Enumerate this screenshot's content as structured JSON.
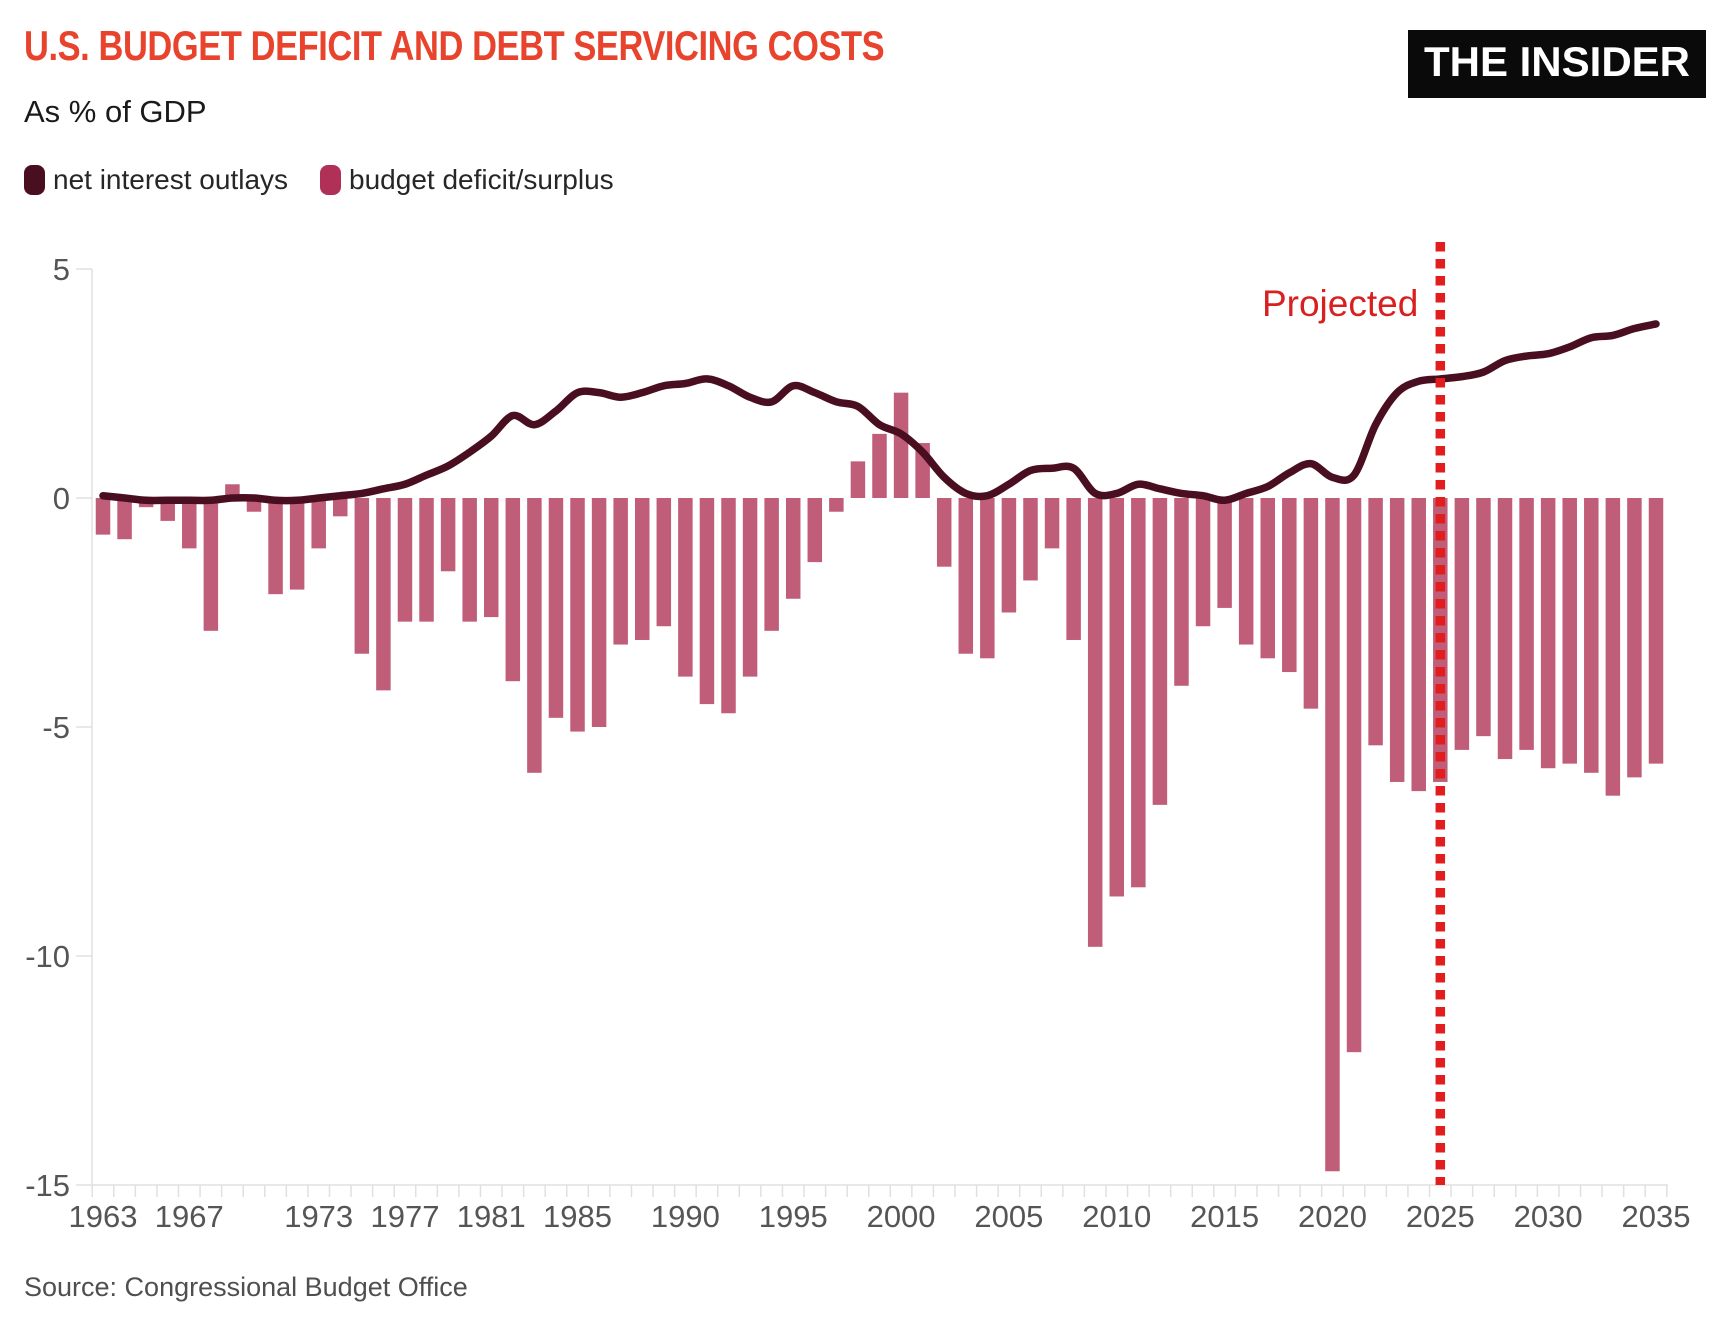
{
  "header": {
    "title": "U.S. BUDGET DEFICIT AND DEBT SERVICING COSTS",
    "subtitle": "As % of GDP",
    "brand": "THE INSIDER"
  },
  "legend": {
    "items": [
      {
        "label": "net interest outlays",
        "color": "#4A0E21"
      },
      {
        "label": "budget deficit/surplus",
        "color": "#B03057"
      }
    ]
  },
  "annotation": {
    "projected_label": "Projected",
    "projected_year": 2025
  },
  "footer": {
    "source": "Source: Congressional Budget Office"
  },
  "colors": {
    "title": "#E8432D",
    "bar": "#C05E7A",
    "line": "#4A0E21",
    "projected_line": "#E11D1D",
    "projected_label": "#D92020",
    "axis": "#E0E0E0",
    "tick_text": "#555555",
    "background": "#FFFFFF",
    "brand_bg": "#0A0A0A",
    "brand_text": "#FFFFFF"
  },
  "chart_data": {
    "type": "bar+line",
    "title": "U.S. BUDGET DEFICIT AND DEBT SERVICING COSTS",
    "subtitle": "As % of GDP",
    "x": [
      1963,
      1964,
      1965,
      1966,
      1967,
      1968,
      1969,
      1970,
      1971,
      1972,
      1973,
      1974,
      1975,
      1976,
      1977,
      1978,
      1979,
      1980,
      1981,
      1982,
      1983,
      1984,
      1985,
      1986,
      1987,
      1988,
      1989,
      1990,
      1991,
      1992,
      1993,
      1994,
      1995,
      1996,
      1997,
      1998,
      1999,
      2000,
      2001,
      2002,
      2003,
      2004,
      2005,
      2006,
      2007,
      2008,
      2009,
      2010,
      2011,
      2012,
      2013,
      2014,
      2015,
      2016,
      2017,
      2018,
      2019,
      2020,
      2021,
      2022,
      2023,
      2024,
      2025,
      2026,
      2027,
      2028,
      2029,
      2030,
      2031,
      2032,
      2033,
      2034,
      2035
    ],
    "series": [
      {
        "name": "budget deficit/surplus",
        "type": "bar",
        "color": "#C05E7A",
        "values": [
          -0.8,
          -0.9,
          -0.2,
          -0.5,
          -1.1,
          -2.9,
          0.3,
          -0.3,
          -2.1,
          -2.0,
          -1.1,
          -0.4,
          -3.4,
          -4.2,
          -2.7,
          -2.7,
          -1.6,
          -2.7,
          -2.6,
          -4.0,
          -6.0,
          -4.8,
          -5.1,
          -5.0,
          -3.2,
          -3.1,
          -2.8,
          -3.9,
          -4.5,
          -4.7,
          -3.9,
          -2.9,
          -2.2,
          -1.4,
          -0.3,
          0.8,
          1.4,
          2.3,
          1.2,
          -1.5,
          -3.4,
          -3.5,
          -2.5,
          -1.8,
          -1.1,
          -3.1,
          -9.8,
          -8.7,
          -8.5,
          -6.7,
          -4.1,
          -2.8,
          -2.4,
          -3.2,
          -3.5,
          -3.8,
          -4.6,
          -14.7,
          -12.1,
          -5.4,
          -6.2,
          -6.4,
          -6.2,
          -5.5,
          -5.2,
          -5.7,
          -5.5,
          -5.9,
          -5.8,
          -6.0,
          -6.5,
          -6.1,
          -5.8
        ]
      },
      {
        "name": "net interest outlays",
        "type": "line",
        "color": "#4A0E21",
        "values": [
          0.05,
          0,
          -0.05,
          -0.05,
          -0.05,
          -0.05,
          0,
          0,
          -0.05,
          -0.05,
          0,
          0.05,
          0.1,
          0.2,
          0.3,
          0.5,
          0.7,
          1.0,
          1.35,
          1.8,
          1.6,
          1.9,
          2.3,
          2.3,
          2.2,
          2.3,
          2.45,
          2.5,
          2.6,
          2.45,
          2.2,
          2.1,
          2.45,
          2.3,
          2.1,
          2.0,
          1.6,
          1.4,
          1.0,
          0.45,
          0.1,
          0.05,
          0.3,
          0.6,
          0.65,
          0.65,
          0.1,
          0.1,
          0.3,
          0.2,
          0.1,
          0.05,
          -0.05,
          0.1,
          0.25,
          0.55,
          0.75,
          0.45,
          0.5,
          1.6,
          2.3,
          2.55,
          2.6,
          2.65,
          2.75,
          3.0,
          3.1,
          3.15,
          3.3,
          3.5,
          3.55,
          3.7,
          3.8
        ]
      }
    ],
    "xticks": [
      "1963",
      "1967",
      "1973",
      "1977",
      "1981",
      "1985",
      "1990",
      "1995",
      "2000",
      "2005",
      "2010",
      "2015",
      "2020",
      "2025",
      "2030",
      "2035"
    ],
    "yticks": [
      5,
      0,
      -5,
      -10,
      -15
    ],
    "ylim": [
      -15,
      5
    ],
    "xlim": [
      1963,
      2035
    ],
    "grid": false,
    "legend_position": "top-left",
    "projected_divider_year": 2025,
    "annotations": [
      "Projected"
    ]
  }
}
